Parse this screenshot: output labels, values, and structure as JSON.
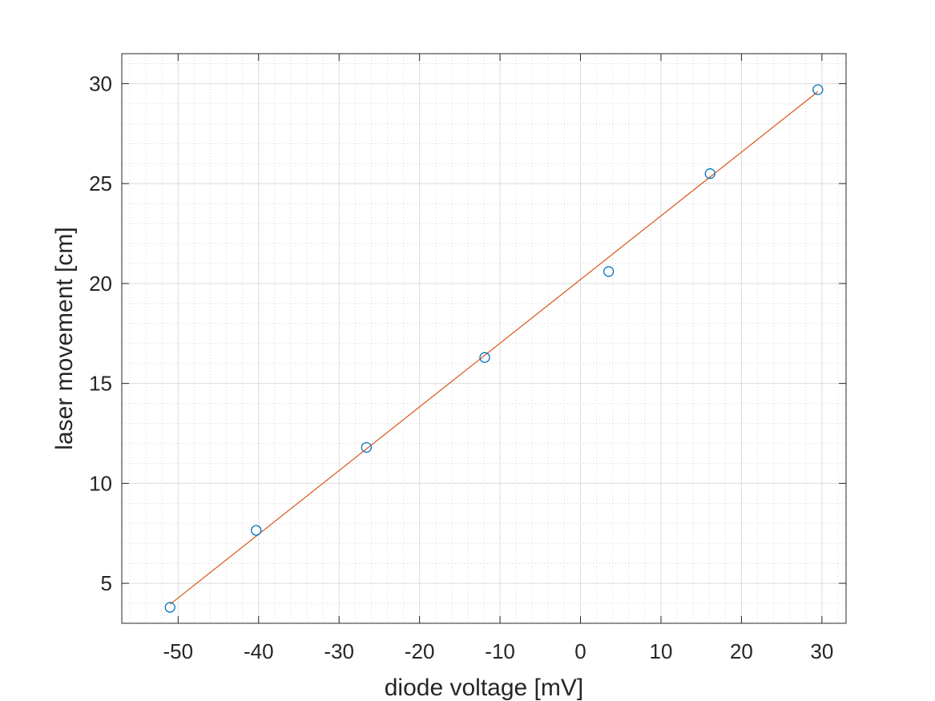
{
  "chart_data": {
    "type": "scatter",
    "xlabel": "diode voltage [mV]",
    "ylabel": "laser movement [cm]",
    "xlim": [
      -57,
      33
    ],
    "ylim": [
      3,
      31.5
    ],
    "xticks": [
      -50,
      -40,
      -30,
      -20,
      -10,
      0,
      10,
      20,
      30
    ],
    "yticks": [
      5,
      10,
      15,
      20,
      25,
      30
    ],
    "grid": true,
    "minor_grid": true,
    "series": [
      {
        "kind": "markers",
        "marker": "circle-open",
        "color": "#0072bd",
        "points": [
          {
            "x": -51.0,
            "y": 3.8
          },
          {
            "x": -40.3,
            "y": 7.65
          },
          {
            "x": -26.6,
            "y": 11.8
          },
          {
            "x": -11.9,
            "y": 16.3
          },
          {
            "x": 3.5,
            "y": 20.6
          },
          {
            "x": 16.1,
            "y": 25.5
          },
          {
            "x": 29.5,
            "y": 29.7
          }
        ]
      },
      {
        "kind": "line",
        "color": "#d95319",
        "points": [
          {
            "x": -51.0,
            "y": 3.95
          },
          {
            "x": 29.5,
            "y": 29.6
          }
        ]
      }
    ]
  }
}
